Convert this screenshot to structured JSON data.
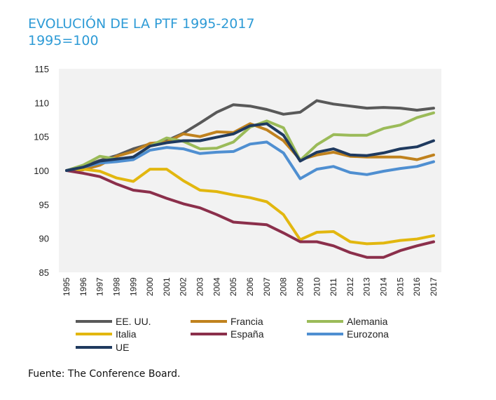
{
  "chart_data": {
    "type": "line",
    "title": "EVOLUCIÓN DE LA PTF 1995-2017",
    "subtitle": "1995=100",
    "xlabel": "",
    "ylabel": "",
    "categories": [
      "1995",
      "1996",
      "1997",
      "1998",
      "1999",
      "2000",
      "2001",
      "2002",
      "2003",
      "2004",
      "2005",
      "2006",
      "2007",
      "2008",
      "2009",
      "2010",
      "2011",
      "2012",
      "2013",
      "2014",
      "2015",
      "2016",
      "2017"
    ],
    "ylim": [
      85,
      115
    ],
    "yticks": [
      85,
      90,
      95,
      100,
      105,
      110,
      115
    ],
    "grid": false,
    "legend_position": "bottom",
    "series": [
      {
        "name": "EE. UU.",
        "color": "#595959",
        "values": [
          100,
          100.6,
          101.5,
          102.2,
          103.2,
          103.9,
          104.4,
          105.5,
          107.0,
          108.6,
          109.7,
          109.5,
          109.0,
          108.3,
          108.6,
          110.3,
          109.8,
          109.5,
          109.2,
          109.3,
          109.2,
          108.9,
          109.2
        ]
      },
      {
        "name": "Francia",
        "color": "#c0821e",
        "values": [
          100,
          100.1,
          100.8,
          102.1,
          102.8,
          104.0,
          104.2,
          105.4,
          105.0,
          105.7,
          105.6,
          106.9,
          106.0,
          104.4,
          101.6,
          102.3,
          102.7,
          102.1,
          102.0,
          102.0,
          102.0,
          101.6,
          102.3
        ]
      },
      {
        "name": "Alemania",
        "color": "#9bbb59",
        "values": [
          100,
          100.8,
          102.1,
          101.7,
          101.9,
          103.6,
          104.8,
          104.3,
          103.2,
          103.3,
          104.2,
          106.4,
          107.3,
          106.3,
          101.5,
          103.8,
          105.3,
          105.2,
          105.2,
          106.2,
          106.7,
          107.8,
          108.5
        ]
      },
      {
        "name": "Italia",
        "color": "#e2b70f",
        "values": [
          100,
          100.2,
          99.9,
          98.9,
          98.4,
          100.2,
          100.2,
          98.5,
          97.1,
          96.9,
          96.4,
          96.0,
          95.4,
          93.5,
          89.8,
          90.9,
          91.0,
          89.5,
          89.2,
          89.3,
          89.7,
          89.9,
          90.4
        ]
      },
      {
        "name": "España",
        "color": "#8b2f4b",
        "values": [
          100,
          99.6,
          99.1,
          98.0,
          97.1,
          96.8,
          95.9,
          95.1,
          94.5,
          93.5,
          92.4,
          92.2,
          92.0,
          90.8,
          89.5,
          89.5,
          88.9,
          87.9,
          87.2,
          87.2,
          88.2,
          88.9,
          89.5
        ]
      },
      {
        "name": "Eurozona",
        "color": "#4f8fd1",
        "values": [
          100,
          100.5,
          101.1,
          101.3,
          101.6,
          103.0,
          103.4,
          103.2,
          102.5,
          102.7,
          102.8,
          103.9,
          104.2,
          102.6,
          98.8,
          100.2,
          100.6,
          99.7,
          99.4,
          99.9,
          100.3,
          100.6,
          101.3
        ]
      },
      {
        "name": "UE",
        "color": "#1f3a5f",
        "values": [
          100,
          100.5,
          101.4,
          101.7,
          102.0,
          103.6,
          104.1,
          104.4,
          104.4,
          104.9,
          105.4,
          106.6,
          106.9,
          105.2,
          101.4,
          102.7,
          103.2,
          102.3,
          102.2,
          102.6,
          103.2,
          103.5,
          104.4
        ]
      }
    ],
    "source": "Fuente: The Conference Board."
  }
}
